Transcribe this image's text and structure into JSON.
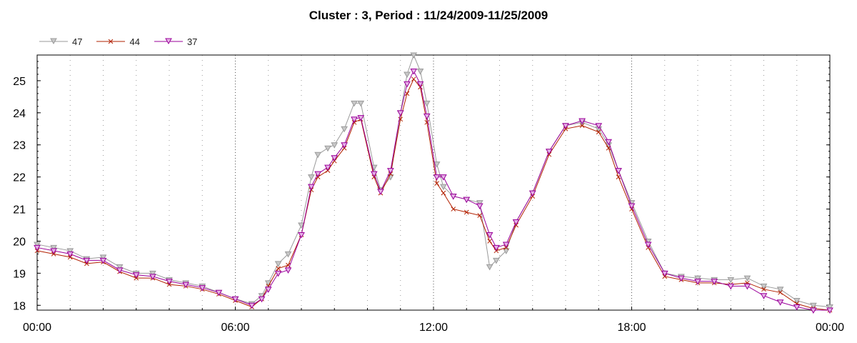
{
  "chart_data": {
    "type": "line",
    "title": "Cluster : 3, Period : 11/24/2009-11/25/2009",
    "xlabel": "",
    "ylabel": "",
    "x_range": [
      "00:00",
      "24:00"
    ],
    "ylim": [
      17.85,
      25.8
    ],
    "x_ticks": [
      "00:00",
      "06:00",
      "12:00",
      "18:00",
      "00:00"
    ],
    "y_ticks": [
      18,
      19,
      20,
      21,
      22,
      23,
      24,
      25
    ],
    "grid": true,
    "legend_position": "top-left",
    "series": [
      {
        "name": "47",
        "color": "#9a9a9a",
        "marker": "triangle-down",
        "points": [
          [
            0,
            19.9
          ],
          [
            0.5,
            19.8
          ],
          [
            1,
            19.7
          ],
          [
            1.5,
            19.45
          ],
          [
            2,
            19.5
          ],
          [
            2.5,
            19.2
          ],
          [
            3,
            19.0
          ],
          [
            3.5,
            19.0
          ],
          [
            4,
            18.8
          ],
          [
            4.5,
            18.7
          ],
          [
            5,
            18.6
          ],
          [
            5.5,
            18.4
          ],
          [
            6,
            18.2
          ],
          [
            6.5,
            18.05
          ],
          [
            6.8,
            18.3
          ],
          [
            7,
            18.7
          ],
          [
            7.3,
            19.3
          ],
          [
            7.6,
            19.6
          ],
          [
            8,
            20.5
          ],
          [
            8.3,
            22.0
          ],
          [
            8.5,
            22.7
          ],
          [
            8.8,
            22.9
          ],
          [
            9,
            23.0
          ],
          [
            9.3,
            23.5
          ],
          [
            9.6,
            24.3
          ],
          [
            9.8,
            24.3
          ],
          [
            10.2,
            22.3
          ],
          [
            10.4,
            21.6
          ],
          [
            10.7,
            22.0
          ],
          [
            11,
            24.0
          ],
          [
            11.2,
            25.2
          ],
          [
            11.4,
            25.8
          ],
          [
            11.6,
            25.3
          ],
          [
            11.8,
            24.3
          ],
          [
            12.1,
            22.4
          ],
          [
            12.3,
            21.7
          ],
          [
            12.6,
            21.4
          ],
          [
            13,
            21.3
          ],
          [
            13.4,
            21.2
          ],
          [
            13.7,
            19.2
          ],
          [
            13.9,
            19.4
          ],
          [
            14.2,
            19.7
          ],
          [
            14.5,
            20.6
          ],
          [
            15,
            21.5
          ],
          [
            15.5,
            22.8
          ],
          [
            16,
            23.6
          ],
          [
            16.5,
            23.7
          ],
          [
            17,
            23.5
          ],
          [
            17.3,
            23.0
          ],
          [
            17.6,
            22.2
          ],
          [
            18,
            21.2
          ],
          [
            18.5,
            20.0
          ],
          [
            19,
            19.0
          ],
          [
            19.5,
            18.9
          ],
          [
            20,
            18.85
          ],
          [
            20.5,
            18.8
          ],
          [
            21,
            18.8
          ],
          [
            21.5,
            18.85
          ],
          [
            22,
            18.6
          ],
          [
            22.5,
            18.5
          ],
          [
            23,
            18.15
          ],
          [
            23.5,
            18.0
          ],
          [
            24,
            17.95
          ]
        ]
      },
      {
        "name": "44",
        "color": "#b22000",
        "marker": "x",
        "points": [
          [
            0,
            19.7
          ],
          [
            0.5,
            19.6
          ],
          [
            1,
            19.5
          ],
          [
            1.5,
            19.3
          ],
          [
            2,
            19.35
          ],
          [
            2.5,
            19.05
          ],
          [
            3,
            18.85
          ],
          [
            3.5,
            18.85
          ],
          [
            4,
            18.65
          ],
          [
            4.5,
            18.6
          ],
          [
            5,
            18.5
          ],
          [
            5.5,
            18.35
          ],
          [
            6,
            18.15
          ],
          [
            6.5,
            17.95
          ],
          [
            6.8,
            18.2
          ],
          [
            7,
            18.6
          ],
          [
            7.3,
            19.15
          ],
          [
            7.6,
            19.25
          ],
          [
            8,
            20.2
          ],
          [
            8.3,
            21.6
          ],
          [
            8.5,
            22.0
          ],
          [
            8.8,
            22.2
          ],
          [
            9,
            22.5
          ],
          [
            9.3,
            22.9
          ],
          [
            9.6,
            23.7
          ],
          [
            9.8,
            23.8
          ],
          [
            10.2,
            22.0
          ],
          [
            10.4,
            21.5
          ],
          [
            10.7,
            22.1
          ],
          [
            11,
            23.8
          ],
          [
            11.2,
            24.6
          ],
          [
            11.4,
            25.05
          ],
          [
            11.6,
            24.8
          ],
          [
            11.8,
            23.7
          ],
          [
            12.1,
            21.8
          ],
          [
            12.3,
            21.5
          ],
          [
            12.6,
            21.0
          ],
          [
            13,
            20.9
          ],
          [
            13.4,
            20.8
          ],
          [
            13.7,
            20.0
          ],
          [
            13.9,
            19.7
          ],
          [
            14.2,
            19.8
          ],
          [
            14.5,
            20.5
          ],
          [
            15,
            21.4
          ],
          [
            15.5,
            22.7
          ],
          [
            16,
            23.5
          ],
          [
            16.5,
            23.6
          ],
          [
            17,
            23.4
          ],
          [
            17.3,
            22.9
          ],
          [
            17.6,
            22.0
          ],
          [
            18,
            21.0
          ],
          [
            18.5,
            19.8
          ],
          [
            19,
            18.9
          ],
          [
            19.5,
            18.8
          ],
          [
            20,
            18.7
          ],
          [
            20.5,
            18.7
          ],
          [
            21,
            18.65
          ],
          [
            21.5,
            18.7
          ],
          [
            22,
            18.5
          ],
          [
            22.5,
            18.4
          ],
          [
            23,
            18.05
          ],
          [
            23.5,
            17.9
          ],
          [
            24,
            17.85
          ]
        ]
      },
      {
        "name": "37",
        "color": "#9a009a",
        "marker": "triangle-down",
        "points": [
          [
            0,
            19.8
          ],
          [
            0.5,
            19.7
          ],
          [
            1,
            19.6
          ],
          [
            1.5,
            19.4
          ],
          [
            2,
            19.4
          ],
          [
            2.5,
            19.1
          ],
          [
            3,
            18.95
          ],
          [
            3.5,
            18.9
          ],
          [
            4,
            18.75
          ],
          [
            4.5,
            18.65
          ],
          [
            5,
            18.55
          ],
          [
            5.5,
            18.4
          ],
          [
            6,
            18.2
          ],
          [
            6.5,
            18.0
          ],
          [
            6.8,
            18.2
          ],
          [
            7,
            18.5
          ],
          [
            7.3,
            19.0
          ],
          [
            7.6,
            19.1
          ],
          [
            8,
            20.2
          ],
          [
            8.3,
            21.7
          ],
          [
            8.5,
            22.1
          ],
          [
            8.8,
            22.3
          ],
          [
            9,
            22.6
          ],
          [
            9.3,
            23.0
          ],
          [
            9.6,
            23.8
          ],
          [
            9.8,
            23.85
          ],
          [
            10.2,
            22.1
          ],
          [
            10.4,
            21.55
          ],
          [
            10.7,
            22.2
          ],
          [
            11,
            24.0
          ],
          [
            11.2,
            24.9
          ],
          [
            11.4,
            25.3
          ],
          [
            11.6,
            24.9
          ],
          [
            11.8,
            23.9
          ],
          [
            12.1,
            22.0
          ],
          [
            12.3,
            22.0
          ],
          [
            12.6,
            21.4
          ],
          [
            13,
            21.3
          ],
          [
            13.4,
            21.1
          ],
          [
            13.7,
            20.2
          ],
          [
            13.9,
            19.8
          ],
          [
            14.2,
            19.9
          ],
          [
            14.5,
            20.6
          ],
          [
            15,
            21.5
          ],
          [
            15.5,
            22.8
          ],
          [
            16,
            23.6
          ],
          [
            16.5,
            23.75
          ],
          [
            17,
            23.6
          ],
          [
            17.3,
            23.1
          ],
          [
            17.6,
            22.2
          ],
          [
            18,
            21.1
          ],
          [
            18.5,
            19.9
          ],
          [
            19,
            19.0
          ],
          [
            19.5,
            18.85
          ],
          [
            20,
            18.75
          ],
          [
            20.5,
            18.75
          ],
          [
            21,
            18.6
          ],
          [
            21.5,
            18.6
          ],
          [
            22,
            18.3
          ],
          [
            22.5,
            18.1
          ],
          [
            23,
            17.95
          ],
          [
            23.5,
            17.85
          ],
          [
            24,
            17.85
          ]
        ]
      }
    ]
  }
}
